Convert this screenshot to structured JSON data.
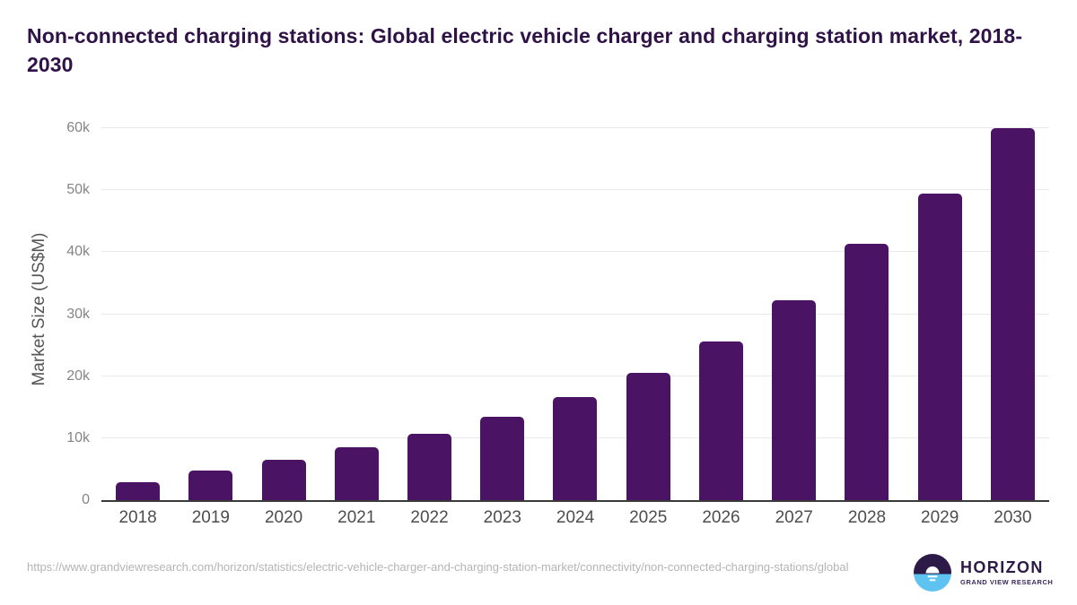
{
  "title": "Non-connected charging stations: Global electric vehicle charger and charging station market, 2018-2030",
  "chart_data": {
    "type": "bar",
    "title": "Non-connected charging stations: Global electric vehicle charger and charging station market, 2018-2030",
    "xlabel": "",
    "ylabel": "Market Size (US$M)",
    "categories": [
      "2018",
      "2019",
      "2020",
      "2021",
      "2022",
      "2023",
      "2024",
      "2025",
      "2026",
      "2027",
      "2028",
      "2029",
      "2030"
    ],
    "values": [
      2900,
      4800,
      6500,
      8500,
      10700,
      13500,
      16600,
      20600,
      25600,
      32200,
      41300,
      49400,
      60000
    ],
    "ylim": [
      0,
      60000
    ],
    "yticks": [
      {
        "value": 0,
        "label": "0"
      },
      {
        "value": 10000,
        "label": "10k"
      },
      {
        "value": 20000,
        "label": "20k"
      },
      {
        "value": 30000,
        "label": "30k"
      },
      {
        "value": 40000,
        "label": "40k"
      },
      {
        "value": 50000,
        "label": "50k"
      },
      {
        "value": 60000,
        "label": "60k"
      }
    ],
    "grid": true,
    "legend": false,
    "bar_color": "#4a1364"
  },
  "footer": {
    "url": "https://www.grandviewresearch.com/horizon/statistics/electric-vehicle-charger-and-charging-station-market/connectivity/non-connected-charging-stations/global",
    "logo": {
      "name": "HORIZON",
      "subtitle": "GRAND VIEW RESEARCH"
    }
  },
  "colors": {
    "bar_color": "#4a1364",
    "title_color": "#2f1347",
    "axis_label_color": "#555555",
    "tick_label_color": "#858585",
    "x_label_color": "#4d4d4d",
    "gridline_color": "#e9e9e9",
    "baseline_color": "#3a3a3a",
    "url_color": "#b4b4b4",
    "logo_purple": "#2e1a47",
    "logo_blue": "#5fc3f1",
    "logo_subtitle_color": "#3a2760"
  }
}
